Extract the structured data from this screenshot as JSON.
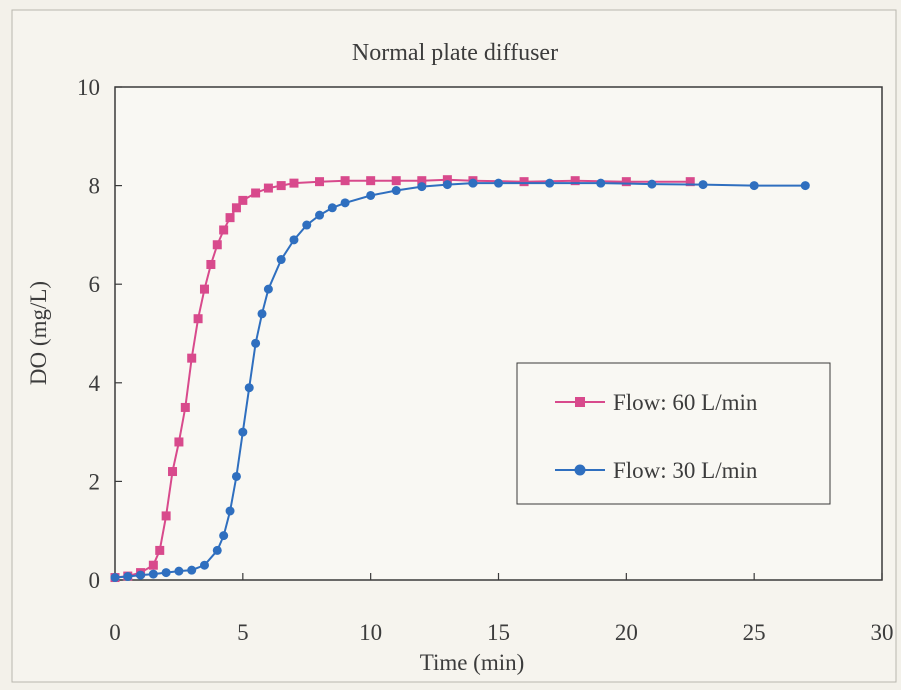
{
  "chart_data": {
    "type": "line",
    "title": "Normal plate diffuser",
    "xlabel": "Time (min)",
    "ylabel": "DO (mg/L)",
    "xlim": [
      0,
      30
    ],
    "ylim": [
      0,
      10
    ],
    "xticks": [
      0,
      5,
      10,
      15,
      20,
      25,
      30
    ],
    "yticks": [
      0,
      2,
      4,
      6,
      8,
      10
    ],
    "grid": false,
    "legend_position": "right-middle",
    "series": [
      {
        "name": "Flow: 60 L/min",
        "color": "#d84a8c",
        "marker": "square",
        "x": [
          0,
          0.5,
          1.0,
          1.5,
          1.75,
          2.0,
          2.25,
          2.5,
          2.75,
          3.0,
          3.25,
          3.5,
          3.75,
          4.0,
          4.25,
          4.5,
          4.75,
          5.0,
          5.5,
          6.0,
          6.5,
          7.0,
          8.0,
          9.0,
          10.0,
          11.0,
          12.0,
          13.0,
          14.0,
          16.0,
          18.0,
          20.0,
          22.5
        ],
        "y": [
          0.05,
          0.08,
          0.15,
          0.3,
          0.6,
          1.3,
          2.2,
          2.8,
          3.5,
          4.5,
          5.3,
          5.9,
          6.4,
          6.8,
          7.1,
          7.35,
          7.55,
          7.7,
          7.85,
          7.95,
          8.0,
          8.05,
          8.08,
          8.1,
          8.1,
          8.1,
          8.1,
          8.12,
          8.1,
          8.08,
          8.1,
          8.08,
          8.08
        ]
      },
      {
        "name": "Flow: 30 L/min",
        "color": "#2f6fbf",
        "marker": "circle",
        "x": [
          0,
          0.5,
          1.0,
          1.5,
          2.0,
          2.5,
          3.0,
          3.5,
          4.0,
          4.25,
          4.5,
          4.75,
          5.0,
          5.25,
          5.5,
          5.75,
          6.0,
          6.5,
          7.0,
          7.5,
          8.0,
          8.5,
          9.0,
          10.0,
          11.0,
          12.0,
          13.0,
          14.0,
          15.0,
          17.0,
          19.0,
          21.0,
          23.0,
          25.0,
          27.0
        ],
        "y": [
          0.05,
          0.07,
          0.1,
          0.12,
          0.15,
          0.18,
          0.2,
          0.3,
          0.6,
          0.9,
          1.4,
          2.1,
          3.0,
          3.9,
          4.8,
          5.4,
          5.9,
          6.5,
          6.9,
          7.2,
          7.4,
          7.55,
          7.65,
          7.8,
          7.9,
          7.98,
          8.02,
          8.05,
          8.05,
          8.05,
          8.05,
          8.03,
          8.02,
          8.0,
          8.0
        ]
      }
    ]
  }
}
